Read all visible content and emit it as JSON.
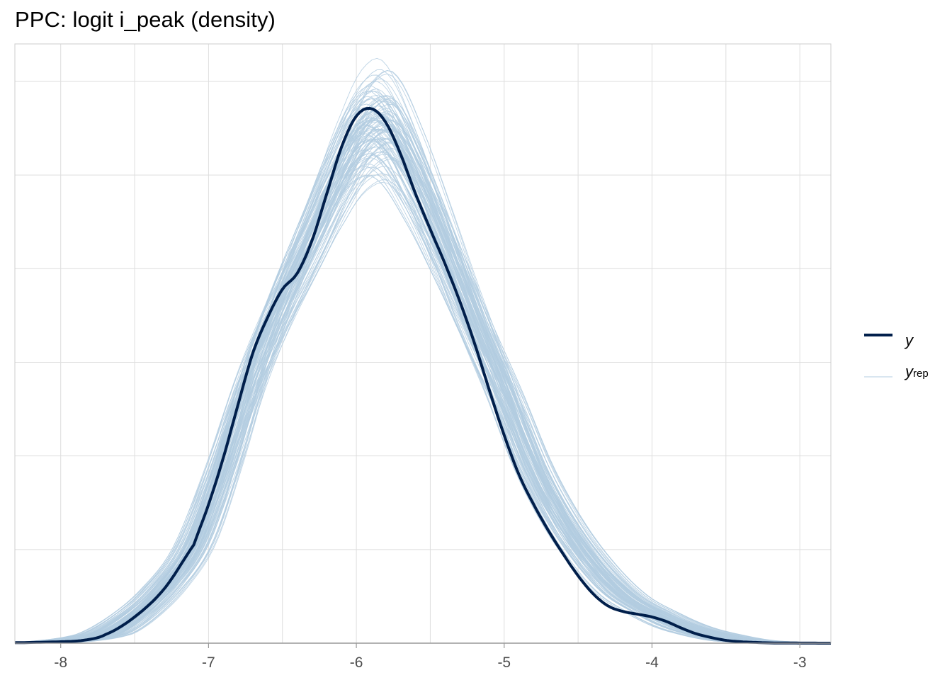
{
  "title": "PPC: logit i_peak (density)",
  "colors": {
    "y": "#011f4b",
    "yrep": "#b3cde0",
    "grid": "#dedede",
    "border": "#cccccc",
    "axis": "#999999",
    "tick_text": "#4d4d4d"
  },
  "legend": {
    "y_label": "y",
    "yrep_label": "y",
    "yrep_subscript": "rep"
  },
  "chart_data": {
    "type": "line",
    "title": "PPC: logit i_peak (density)",
    "xlabel": "",
    "ylabel": "",
    "xlim": [
      -8.31,
      -2.79
    ],
    "ylim": [
      0,
      0.64
    ],
    "x_ticks": [
      -8,
      -7,
      -6,
      -5,
      -4,
      -3
    ],
    "x_tick_labels": [
      "-8",
      "-7",
      "-6",
      "-5",
      "-4",
      "-3"
    ],
    "y_tick_labels": [],
    "grid": true,
    "legend_position": "right",
    "series": [
      {
        "name": "y",
        "role": "observed",
        "x": [
          -8.31,
          -8.0,
          -7.85,
          -7.7,
          -7.5,
          -7.3,
          -7.1,
          -7.0,
          -6.9,
          -6.8,
          -6.7,
          -6.6,
          -6.5,
          -6.4,
          -6.3,
          -6.2,
          -6.1,
          -6.0,
          -5.9,
          -5.8,
          -5.7,
          -5.6,
          -5.5,
          -5.4,
          -5.3,
          -5.2,
          -5.1,
          -5.0,
          -4.9,
          -4.8,
          -4.7,
          -4.6,
          -4.5,
          -4.4,
          -4.3,
          -4.2,
          -4.1,
          -4.0,
          -3.9,
          -3.8,
          -3.7,
          -3.6,
          -3.5,
          -3.4,
          -3.3,
          -3.2,
          -3.0,
          -2.79
        ],
        "y": [
          0.0005,
          0.0015,
          0.003,
          0.009,
          0.028,
          0.058,
          0.105,
          0.148,
          0.198,
          0.255,
          0.31,
          0.348,
          0.378,
          0.395,
          0.43,
          0.48,
          0.53,
          0.563,
          0.571,
          0.556,
          0.522,
          0.48,
          0.442,
          0.405,
          0.365,
          0.32,
          0.27,
          0.222,
          0.18,
          0.148,
          0.12,
          0.095,
          0.072,
          0.053,
          0.04,
          0.034,
          0.031,
          0.028,
          0.023,
          0.016,
          0.01,
          0.006,
          0.003,
          0.0015,
          0.0008,
          0.0003,
          0.0001,
          0.0
        ]
      },
      {
        "name": "y_rep",
        "role": "replicated draws (many)",
        "x": [
          -8.31,
          -8.0,
          -7.7,
          -7.5,
          -7.3,
          -7.1,
          -6.9,
          -6.7,
          -6.5,
          -6.3,
          -6.1,
          -5.95,
          -5.8,
          -5.6,
          -5.4,
          -5.2,
          -5.0,
          -4.8,
          -4.6,
          -4.4,
          -4.2,
          -4.0,
          -3.8,
          -3.6,
          -3.4,
          -3.2,
          -3.0,
          -2.79
        ],
        "y": [
          0.0005,
          0.002,
          0.01,
          0.03,
          0.06,
          0.105,
          0.19,
          0.29,
          0.37,
          0.44,
          0.51,
          0.55,
          0.555,
          0.5,
          0.425,
          0.345,
          0.27,
          0.19,
          0.13,
          0.085,
          0.052,
          0.033,
          0.018,
          0.009,
          0.003,
          0.001,
          0.0002,
          0.0
        ]
      }
    ]
  }
}
